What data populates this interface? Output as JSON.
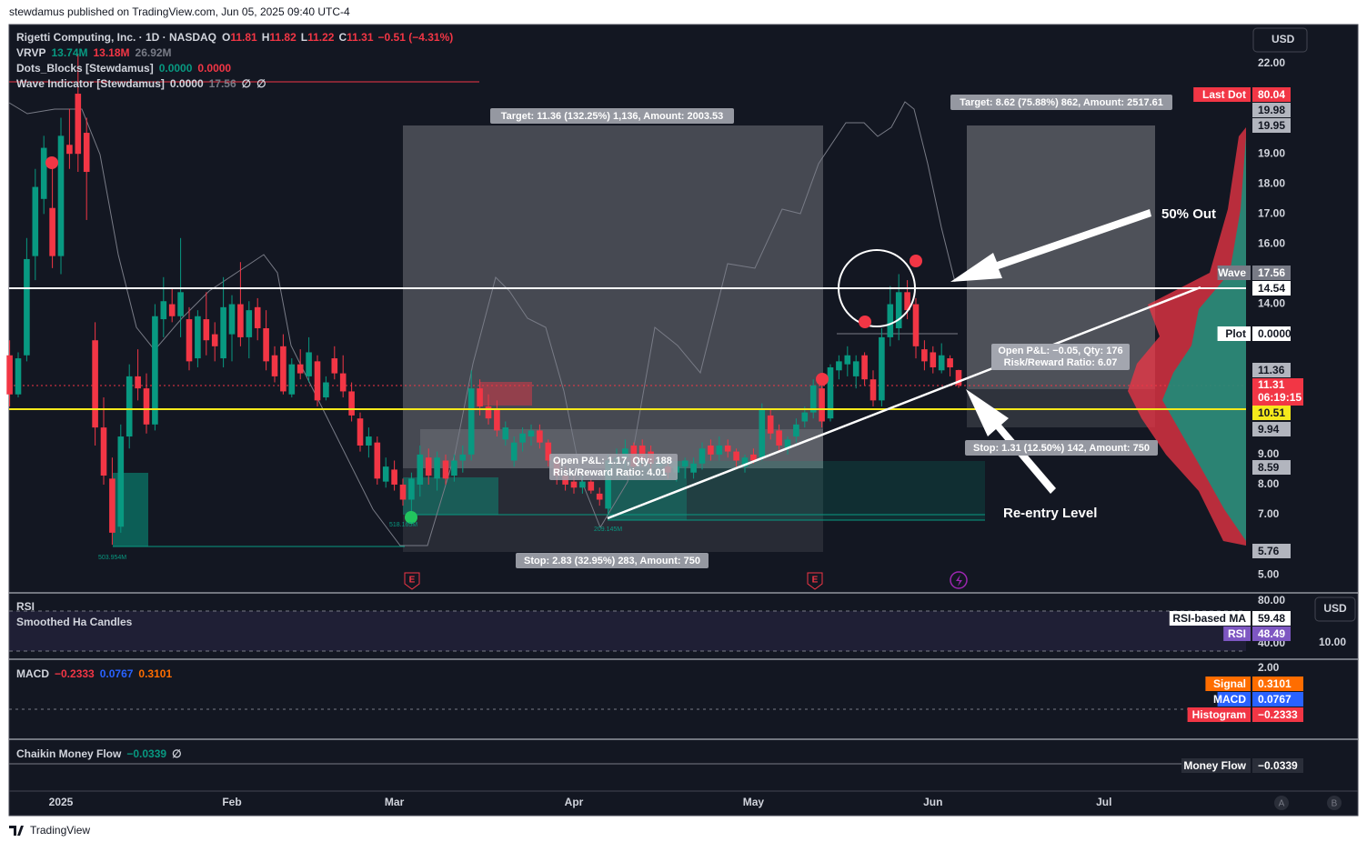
{
  "chart_data": {
    "type": "candlestick",
    "published": "stewdamus published on TradingView.com, Jun 05, 2025 09:40 UTC-4",
    "title": "Rigetti Computing, Inc. · 1D · NASDAQ",
    "ohlc_labels": [
      "O",
      "H",
      "L",
      "C"
    ],
    "change": "−0.51 (−4.31%)",
    "currency": "USD",
    "up_color": "#089981",
    "down_color": "#f23645",
    "grid": false,
    "categories": [
      null,
      null,
      null,
      null,
      null,
      null,
      "2025",
      null,
      null,
      null,
      null,
      null,
      null,
      null,
      null,
      null,
      null,
      null,
      null,
      null,
      null,
      null,
      null,
      null,
      null,
      null,
      "Feb",
      null,
      null,
      null,
      null,
      null,
      null,
      null,
      null,
      null,
      null,
      null,
      null,
      null,
      null,
      null,
      null,
      null,
      null,
      "Mar",
      null,
      null,
      null,
      null,
      null,
      null,
      null,
      null,
      null,
      null,
      null,
      null,
      null,
      null,
      null,
      null,
      null,
      null,
      null,
      null,
      "Apr",
      null,
      null,
      null,
      null,
      null,
      null,
      null,
      null,
      null,
      null,
      null,
      null,
      null,
      null,
      null,
      null,
      null,
      null,
      null,
      null,
      "May",
      null,
      null,
      null,
      null,
      null,
      null,
      null,
      null,
      null,
      null,
      null,
      null,
      null,
      null,
      null,
      null,
      null,
      null,
      null,
      null,
      "Jun",
      null,
      null,
      null,
      null,
      null,
      null,
      null,
      null,
      null,
      null,
      null,
      null,
      null,
      null,
      null,
      null,
      null,
      null,
      null,
      "Jul"
    ],
    "open": [
      12.3,
      11.0,
      12.3,
      15.6,
      17.5,
      17.2,
      15.6,
      19.3,
      21.0,
      19.7,
      12.8,
      9.9,
      8.2,
      6.6,
      9.6,
      11.6,
      11.2,
      10.0,
      13.5,
      14.0,
      13.6,
      13.5,
      12.2,
      13.5,
      13.0,
      12.2,
      13.0,
      14.0,
      12.9,
      13.9,
      13.2,
      12.3,
      12.6,
      11.0,
      12.0,
      11.6,
      12.1,
      10.9,
      12.2,
      11.7,
      11.1,
      10.2,
      9.3,
      9.4,
      8.1,
      8.5,
      8.0,
      7.5,
      8.0,
      8.9,
      8.2,
      8.8,
      8.3,
      8.8,
      9.0,
      11.2,
      10.6,
      10.5,
      9.5,
      8.8,
      9.4,
      9.6,
      9.8,
      9.4,
      8.8,
      8.3,
      8.1,
      7.9,
      8.1,
      7.7,
      7.2,
      8.8,
      8.9,
      9.3,
      9.3,
      9.1,
      8.6,
      8.6,
      8.4,
      8.6,
      8.4,
      8.7,
      9.3,
      9.0,
      9.3,
      9.1,
      8.6,
      9.0,
      8.9,
      10.3,
      9.8,
      9.2,
      9.6,
      10.1,
      10.4,
      11.2,
      10.2,
      11.8,
      12.0,
      11.6,
      12.3,
      11.5,
      10.8,
      12.9,
      13.2,
      14.4,
      14.0,
      12.5,
      12.4,
      11.8,
      12.2,
      11.81,
      null,
      null,
      null,
      null,
      null,
      null,
      null,
      null,
      null,
      null,
      null,
      null,
      null,
      null,
      null,
      null,
      null
    ],
    "high": [
      12.8,
      12.4,
      16.2,
      18.5,
      19.6,
      18.8,
      20.2,
      20.5,
      22.3,
      20.2,
      13.4,
      10.9,
      8.9,
      10.0,
      12.0,
      12.5,
      11.7,
      14.0,
      14.9,
      14.5,
      16.2,
      13.9,
      13.8,
      14.4,
      13.4,
      14.9,
      14.3,
      15.4,
      14.1,
      14.2,
      13.8,
      12.6,
      13.0,
      12.2,
      12.5,
      12.9,
      12.3,
      11.6,
      12.6,
      12.3,
      11.4,
      10.4,
      9.9,
      9.6,
      8.9,
      8.8,
      8.2,
      8.4,
      9.3,
      9.2,
      9.1,
      9.0,
      9.0,
      9.3,
      11.8,
      11.5,
      11.0,
      10.8,
      10.1,
      9.6,
      9.9,
      10.0,
      10.0,
      9.5,
      9.0,
      8.6,
      8.3,
      8.3,
      8.2,
      7.9,
      9.0,
      9.2,
      9.5,
      9.4,
      9.5,
      9.3,
      8.9,
      8.8,
      8.7,
      8.9,
      8.9,
      9.4,
      9.5,
      9.6,
      9.5,
      9.2,
      9.0,
      9.2,
      10.7,
      10.5,
      10.0,
      9.6,
      10.2,
      10.6,
      11.5,
      11.5,
      12.0,
      12.3,
      12.6,
      12.3,
      12.4,
      11.8,
      13.2,
      14.6,
      15.0,
      14.8,
      14.2,
      12.8,
      12.6,
      12.7,
      12.3,
      11.82,
      null,
      null,
      null,
      null,
      null,
      null,
      null,
      null,
      null,
      null,
      null,
      null,
      null,
      null,
      null,
      null,
      null
    ],
    "low": [
      10.6,
      10.9,
      12.1,
      14.8,
      17.0,
      15.2,
      15.0,
      18.5,
      18.4,
      16.8,
      9.3,
      8.0,
      6.0,
      6.4,
      9.2,
      10.8,
      9.7,
      9.8,
      12.9,
      13.4,
      12.9,
      11.8,
      11.9,
      12.3,
      12.1,
      11.9,
      12.1,
      12.6,
      12.2,
      12.8,
      11.8,
      11.4,
      11.0,
      10.9,
      11.5,
      11.4,
      10.6,
      10.8,
      11.5,
      10.9,
      10.1,
      9.1,
      8.9,
      8.0,
      7.9,
      7.8,
      7.3,
      7.1,
      7.6,
      8.0,
      7.8,
      8.0,
      8.1,
      8.4,
      8.8,
      10.3,
      10.0,
      9.6,
      9.3,
      8.6,
      9.1,
      9.3,
      9.2,
      8.6,
      8.0,
      7.8,
      7.7,
      7.7,
      7.7,
      7.3,
      7.0,
      8.2,
      8.5,
      8.4,
      8.6,
      8.5,
      8.3,
      8.2,
      8.1,
      8.2,
      8.2,
      8.5,
      8.8,
      8.8,
      8.9,
      8.6,
      8.4,
      8.7,
      8.8,
      9.5,
      9.1,
      9.0,
      9.4,
      9.9,
      10.2,
      9.9,
      10.1,
      11.5,
      11.6,
      11.2,
      11.3,
      10.6,
      10.6,
      12.6,
      12.8,
      13.5,
      12.2,
      11.8,
      11.7,
      11.7,
      11.6,
      11.22,
      null,
      null,
      null,
      null,
      null,
      null,
      null,
      null,
      null,
      null,
      null,
      null,
      null,
      null,
      null,
      null,
      null
    ],
    "close": [
      11.0,
      12.2,
      15.5,
      17.9,
      19.2,
      15.6,
      19.6,
      19.0,
      19.0,
      18.4,
      9.9,
      8.3,
      6.4,
      9.6,
      11.6,
      11.2,
      10.0,
      13.6,
      14.1,
      13.6,
      14.4,
      12.1,
      13.6,
      12.8,
      12.6,
      13.9,
      14.0,
      12.9,
      13.8,
      13.2,
      12.1,
      11.6,
      11.1,
      12.0,
      11.7,
      12.4,
      10.8,
      11.4,
      11.7,
      11.1,
      10.3,
      9.3,
      9.6,
      8.2,
      8.6,
      8.0,
      7.5,
      8.2,
      9.0,
      8.3,
      8.9,
      8.2,
      8.8,
      9.0,
      11.2,
      10.6,
      10.2,
      9.8,
      9.9,
      9.4,
      9.7,
      9.8,
      9.4,
      8.8,
      8.3,
      8.0,
      7.9,
      8.1,
      7.8,
      7.5,
      8.8,
      8.9,
      9.2,
      8.6,
      8.8,
      8.7,
      8.7,
      8.4,
      8.6,
      8.8,
      8.7,
      9.2,
      9.0,
      9.3,
      9.1,
      8.8,
      8.9,
      8.8,
      10.5,
      9.7,
      9.3,
      9.5,
      10.0,
      10.4,
      11.3,
      10.1,
      11.9,
      12.1,
      12.3,
      12.1,
      11.5,
      10.8,
      12.9,
      14.0,
      14.4,
      13.8,
      12.6,
      12.1,
      11.9,
      12.3,
      11.9,
      11.31,
      null,
      null,
      null,
      null,
      null,
      null,
      null,
      null,
      null,
      null,
      null,
      null,
      null,
      null,
      null,
      null,
      null
    ],
    "ylim": [
      4.4,
      23.3
    ],
    "yticks": [
      {
        "value": 22,
        "label": "22.00"
      },
      {
        "value": 19,
        "label": "19.00"
      },
      {
        "value": 18,
        "label": "18.00"
      },
      {
        "value": 17,
        "label": "17.00"
      },
      {
        "value": 16,
        "label": "16.00"
      },
      {
        "value": 14,
        "label": "14.00"
      },
      {
        "value": 9,
        "label": "9.00"
      },
      {
        "value": 8,
        "label": "8.00"
      },
      {
        "value": 7,
        "label": "7.00"
      },
      {
        "value": 5,
        "label": "5.00"
      }
    ],
    "last_price_timer": "06:19:15",
    "indicators": [
      {
        "name": "VRVP",
        "values": [
          "13.74M",
          "13.18M",
          "26.92M"
        ]
      },
      {
        "name": "Dots_Blocks [Stewdamus]",
        "values": [
          "0.0000",
          "0.0000"
        ]
      },
      {
        "name": "Wave Indicator [Stewdamus]",
        "values": [
          "0.0000",
          "17.56",
          "∅",
          "∅"
        ]
      }
    ],
    "price_tags": [
      {
        "name": "Last Dot",
        "label": "80.04",
        "color": "#f23645",
        "text_color": "#ffffff"
      },
      {
        "label": "19.98",
        "color": "#b2b5be",
        "text_color": "#131722"
      },
      {
        "label": "19.95",
        "color": "#b2b5be",
        "text_color": "#131722"
      },
      {
        "name": "Wave",
        "label": "17.56",
        "color": "#787b86",
        "text_color": "#ffffff"
      },
      {
        "label": "14.54",
        "color": "#ffffff",
        "text_color": "#131722"
      },
      {
        "name": "Plot",
        "label": "0.0000",
        "color": "#ffffff",
        "text_color": "#131722"
      },
      {
        "label": "11.36",
        "color": "#b2b5be",
        "text_color": "#131722"
      },
      {
        "label": "10.51",
        "color": "#f5e91b",
        "text_color": "#131722"
      },
      {
        "label": "9.94",
        "color": "#b2b5be",
        "text_color": "#131722"
      },
      {
        "label": "8.59",
        "color": "#b2b5be",
        "text_color": "#131722"
      },
      {
        "label": "5.76",
        "color": "#b2b5be",
        "text_color": "#131722"
      }
    ],
    "drawings": {
      "target_1": "Target: 11.36 (132.25%) 1,136, Amount: 2003.53",
      "stop_1": "Stop: 2.83 (32.95%) 283, Amount: 750",
      "pnl_1": "Open P&L: 1.17, Qty: 188",
      "rr_1": "Risk/Reward Ratio: 4.01",
      "target_2": "Target: 8.62 (75.88%) 862, Amount: 2517.61",
      "pnl_2": "Open P&L: −0.05, Qty: 176",
      "rr_2": "Risk/Reward Ratio: 6.07",
      "stop_2": "Stop: 1.31 (12.50%) 142, Amount: 750",
      "note_1": "50% Out",
      "note_2": "Re-entry Level",
      "volume_labels": [
        "503.954M",
        "518.165M",
        "209.145M"
      ],
      "events": [
        "E",
        "E"
      ]
    },
    "rsi": {
      "title": "RSI",
      "overlay": "Smoothed Ha Candles",
      "yticks": [
        "80.00",
        "40.00"
      ],
      "currency": "USD",
      "scale_label": "10.00",
      "tags": [
        {
          "name": "RSI-based MA",
          "label": "59.48",
          "color": "#ffffff",
          "text_color": "#131722"
        },
        {
          "name": "RSI",
          "label": "48.49",
          "color": "#7e57c2",
          "text_color": "#ffffff"
        }
      ]
    },
    "macd": {
      "title": "MACD",
      "values": [
        "−0.2333",
        "0.0767",
        "0.3101"
      ],
      "yticks": [
        "2.00"
      ],
      "tags": [
        {
          "name": "Signal",
          "label": "0.3101",
          "color": "#ff6d00",
          "text_color": "#ffffff"
        },
        {
          "name": "MACD",
          "label": "0.0767",
          "color": "#2962ff",
          "text_color": "#ffffff"
        },
        {
          "name": "Histogram",
          "label": "−0.2333",
          "color": "#f23645",
          "text_color": "#ffffff"
        }
      ]
    },
    "cmf": {
      "title": "Chaikin Money Flow",
      "values": [
        "−0.0339",
        "∅"
      ],
      "tags": [
        {
          "name": "Money Flow",
          "label": "−0.0339",
          "color": "#2a2e39",
          "text_color": "#ffffff"
        }
      ]
    },
    "scale_buttons": [
      "A",
      "B"
    ],
    "footer": "TradingView"
  }
}
